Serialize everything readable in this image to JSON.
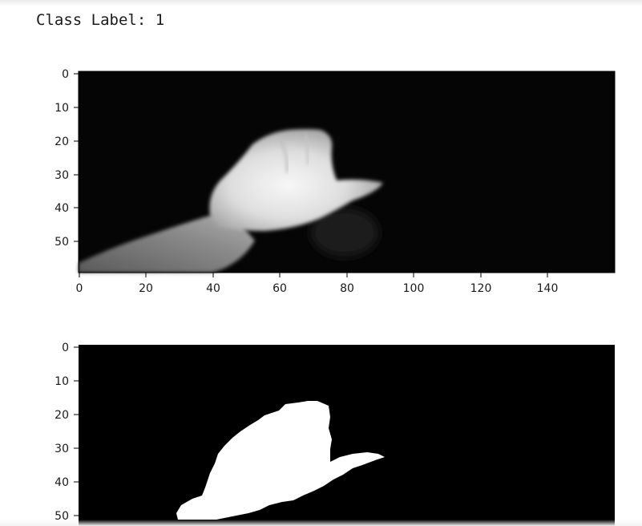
{
  "output": {
    "text": "Class Label: 1"
  },
  "chart_data": [
    {
      "type": "heatmap",
      "description_colormap": "gray",
      "xlim": [
        0,
        160
      ],
      "ylim": [
        60,
        0
      ],
      "xticks": [
        0,
        20,
        40,
        60,
        80,
        100,
        120,
        140
      ],
      "yticks": [
        0,
        10,
        20,
        30,
        40,
        50
      ],
      "content": "grayscale image"
    },
    {
      "type": "heatmap",
      "description_colormap": "binary",
      "xlim": [
        0,
        160
      ],
      "ylim": [
        60,
        0
      ],
      "xticks": [],
      "yticks": [
        0,
        10,
        20,
        30,
        40,
        50
      ],
      "content": "binary mask"
    }
  ]
}
